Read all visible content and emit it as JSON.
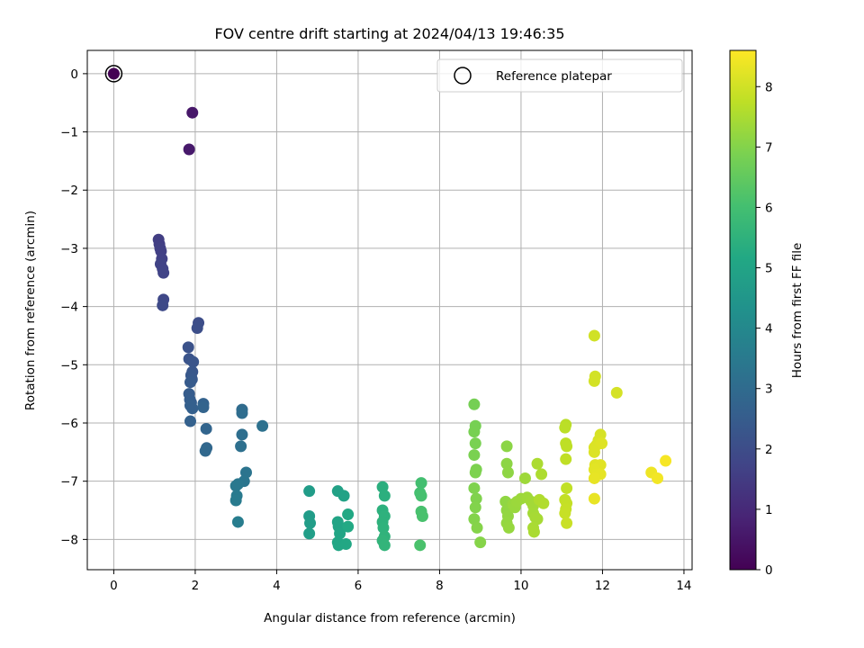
{
  "chart_data": {
    "type": "scatter",
    "title": "FOV centre drift starting at 2024/04/13 19:46:35",
    "xlabel": "Angular distance from reference (arcmin)",
    "ylabel": "Rotation from reference (arcmin)",
    "xlim": [
      -0.65,
      14.2
    ],
    "ylim": [
      -8.52,
      0.4
    ],
    "xticks": [
      "0",
      "2",
      "4",
      "6",
      "8",
      "10",
      "12",
      "14"
    ],
    "yticks": [
      "0",
      "−1",
      "−2",
      "−3",
      "−4",
      "−5",
      "−6",
      "−7",
      "−8"
    ],
    "grid": true,
    "legend": {
      "placement": "top-right",
      "entries": [
        "Reference platepar"
      ]
    },
    "reference_point": {
      "x": 0,
      "y": 0
    },
    "colorbar": {
      "label": "Hours from first FF file",
      "range": [
        0,
        8.6
      ],
      "ticks": [
        "0",
        "1",
        "2",
        "3",
        "4",
        "5",
        "6",
        "7",
        "8"
      ],
      "colormap": "viridis"
    },
    "points": [
      [
        0.0,
        0.0,
        0.0
      ],
      [
        1.93,
        -0.67,
        0.55
      ],
      [
        1.85,
        -1.3,
        0.6
      ],
      [
        1.1,
        -2.85,
        1.55
      ],
      [
        1.12,
        -2.93,
        1.57
      ],
      [
        1.14,
        -3.0,
        1.6
      ],
      [
        1.16,
        -3.05,
        1.62
      ],
      [
        1.18,
        -3.18,
        1.65
      ],
      [
        1.15,
        -3.27,
        1.68
      ],
      [
        1.2,
        -3.35,
        1.7
      ],
      [
        1.22,
        -3.42,
        1.72
      ],
      [
        1.22,
        -3.88,
        1.85
      ],
      [
        1.2,
        -3.98,
        1.9
      ],
      [
        2.08,
        -4.28,
        2.0
      ],
      [
        2.05,
        -4.37,
        2.05
      ],
      [
        1.83,
        -4.7,
        2.15
      ],
      [
        1.85,
        -4.9,
        2.2
      ],
      [
        1.95,
        -4.95,
        2.25
      ],
      [
        1.93,
        -5.12,
        2.3
      ],
      [
        1.9,
        -5.18,
        2.35
      ],
      [
        1.92,
        -5.25,
        2.4
      ],
      [
        1.88,
        -5.3,
        2.45
      ],
      [
        1.85,
        -5.5,
        2.5
      ],
      [
        1.87,
        -5.6,
        2.52
      ],
      [
        1.9,
        -5.65,
        2.55
      ],
      [
        1.88,
        -5.7,
        2.6
      ],
      [
        1.93,
        -5.75,
        2.62
      ],
      [
        1.88,
        -5.97,
        2.65
      ],
      [
        2.2,
        -5.67,
        2.7
      ],
      [
        2.2,
        -5.73,
        2.75
      ],
      [
        2.27,
        -6.1,
        2.8
      ],
      [
        2.28,
        -6.43,
        2.85
      ],
      [
        2.25,
        -6.48,
        2.9
      ],
      [
        3.15,
        -5.77,
        3.0
      ],
      [
        3.15,
        -5.83,
        3.05
      ],
      [
        3.15,
        -6.2,
        3.1
      ],
      [
        3.12,
        -6.4,
        3.15
      ],
      [
        3.65,
        -6.05,
        3.2
      ],
      [
        3.25,
        -6.85,
        3.3
      ],
      [
        3.2,
        -7.0,
        3.35
      ],
      [
        3.05,
        -7.05,
        3.4
      ],
      [
        3.0,
        -7.08,
        3.45
      ],
      [
        3.02,
        -7.25,
        3.5
      ],
      [
        3.0,
        -7.33,
        3.55
      ],
      [
        3.05,
        -7.7,
        3.6
      ],
      [
        4.8,
        -7.17,
        4.7
      ],
      [
        4.8,
        -7.6,
        4.72
      ],
      [
        4.82,
        -7.72,
        4.75
      ],
      [
        4.8,
        -7.9,
        4.78
      ],
      [
        5.5,
        -7.17,
        4.9
      ],
      [
        5.65,
        -7.25,
        4.95
      ],
      [
        5.5,
        -7.7,
        5.0
      ],
      [
        5.52,
        -7.78,
        5.02
      ],
      [
        5.55,
        -7.9,
        5.05
      ],
      [
        5.5,
        -8.05,
        5.08
      ],
      [
        5.52,
        -8.1,
        5.1
      ],
      [
        5.7,
        -8.08,
        5.12
      ],
      [
        5.75,
        -7.57,
        5.15
      ],
      [
        5.75,
        -7.78,
        5.18
      ],
      [
        6.6,
        -7.1,
        5.4
      ],
      [
        6.65,
        -7.25,
        5.42
      ],
      [
        6.6,
        -7.5,
        5.45
      ],
      [
        6.65,
        -7.6,
        5.48
      ],
      [
        6.6,
        -7.7,
        5.5
      ],
      [
        6.62,
        -7.8,
        5.52
      ],
      [
        6.65,
        -7.95,
        5.55
      ],
      [
        6.6,
        -8.02,
        5.58
      ],
      [
        6.65,
        -8.1,
        5.6
      ],
      [
        7.55,
        -7.03,
        6.0
      ],
      [
        7.52,
        -7.2,
        6.02
      ],
      [
        7.55,
        -7.25,
        6.05
      ],
      [
        7.55,
        -7.52,
        6.08
      ],
      [
        7.58,
        -7.6,
        6.1
      ],
      [
        7.52,
        -8.1,
        6.12
      ],
      [
        8.85,
        -5.68,
        6.8
      ],
      [
        8.88,
        -6.05,
        6.82
      ],
      [
        8.85,
        -6.15,
        6.84
      ],
      [
        8.88,
        -6.35,
        6.86
      ],
      [
        8.85,
        -6.55,
        6.88
      ],
      [
        8.9,
        -6.8,
        6.9
      ],
      [
        8.88,
        -6.85,
        6.92
      ],
      [
        8.85,
        -7.12,
        6.94
      ],
      [
        8.9,
        -7.3,
        6.96
      ],
      [
        8.88,
        -7.45,
        6.98
      ],
      [
        8.85,
        -7.65,
        7.0
      ],
      [
        8.92,
        -7.8,
        7.02
      ],
      [
        9.0,
        -8.05,
        7.04
      ],
      [
        9.65,
        -6.4,
        7.1
      ],
      [
        9.65,
        -6.7,
        7.12
      ],
      [
        9.68,
        -6.85,
        7.14
      ],
      [
        9.62,
        -7.35,
        7.16
      ],
      [
        9.65,
        -7.5,
        7.18
      ],
      [
        9.68,
        -7.6,
        7.2
      ],
      [
        9.65,
        -7.72,
        7.22
      ],
      [
        9.7,
        -7.8,
        7.24
      ],
      [
        9.8,
        -7.4,
        7.26
      ],
      [
        9.85,
        -7.45,
        7.28
      ],
      [
        9.9,
        -7.35,
        7.3
      ],
      [
        10.0,
        -7.3,
        7.32
      ],
      [
        10.1,
        -6.95,
        7.34
      ],
      [
        10.15,
        -7.28,
        7.36
      ],
      [
        10.25,
        -7.35,
        7.38
      ],
      [
        10.3,
        -7.42,
        7.4
      ],
      [
        10.3,
        -7.55,
        7.42
      ],
      [
        10.35,
        -7.62,
        7.44
      ],
      [
        10.4,
        -7.65,
        7.46
      ],
      [
        10.3,
        -7.8,
        7.48
      ],
      [
        10.32,
        -7.87,
        7.5
      ],
      [
        10.4,
        -6.7,
        7.52
      ],
      [
        10.5,
        -6.88,
        7.54
      ],
      [
        10.45,
        -7.32,
        7.56
      ],
      [
        10.55,
        -7.38,
        7.58
      ],
      [
        11.1,
        -6.03,
        7.7
      ],
      [
        11.08,
        -6.08,
        7.72
      ],
      [
        11.1,
        -6.35,
        7.74
      ],
      [
        11.12,
        -6.4,
        7.76
      ],
      [
        11.1,
        -6.62,
        7.78
      ],
      [
        11.12,
        -7.12,
        7.8
      ],
      [
        11.08,
        -7.32,
        7.82
      ],
      [
        11.12,
        -7.38,
        7.84
      ],
      [
        11.1,
        -7.48,
        7.86
      ],
      [
        11.08,
        -7.55,
        7.88
      ],
      [
        11.12,
        -7.72,
        7.9
      ],
      [
        11.8,
        -4.5,
        8.0
      ],
      [
        11.82,
        -5.2,
        8.02
      ],
      [
        11.8,
        -5.28,
        8.04
      ],
      [
        12.35,
        -5.48,
        8.06
      ],
      [
        11.95,
        -6.2,
        8.08
      ],
      [
        11.9,
        -6.3,
        8.1
      ],
      [
        11.85,
        -6.38,
        8.12
      ],
      [
        11.8,
        -6.42,
        8.14
      ],
      [
        11.8,
        -6.5,
        8.16
      ],
      [
        11.98,
        -6.35,
        8.18
      ],
      [
        11.82,
        -6.72,
        8.2
      ],
      [
        11.95,
        -6.72,
        8.22
      ],
      [
        11.8,
        -6.8,
        8.24
      ],
      [
        11.85,
        -6.88,
        8.26
      ],
      [
        11.95,
        -6.88,
        8.28
      ],
      [
        11.8,
        -6.95,
        8.3
      ],
      [
        11.8,
        -7.3,
        8.32
      ],
      [
        13.2,
        -6.85,
        8.4
      ],
      [
        13.35,
        -6.95,
        8.45
      ],
      [
        13.55,
        -6.65,
        8.5
      ]
    ]
  }
}
